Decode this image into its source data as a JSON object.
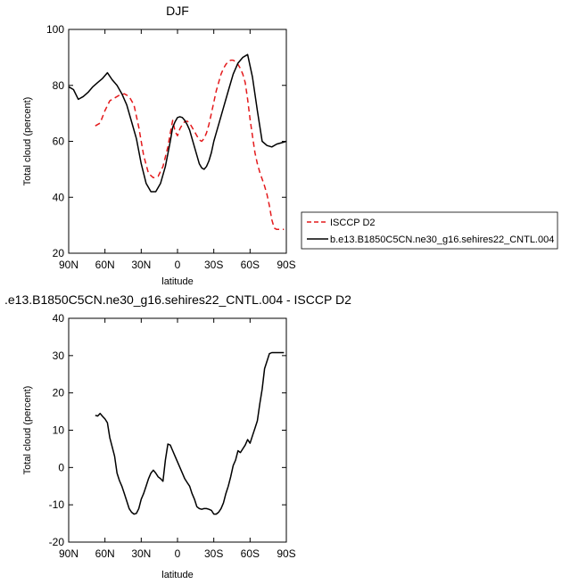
{
  "chart_data": [
    {
      "type": "line",
      "title": "DJF",
      "xlabel": "latitude",
      "ylabel": "Total cloud (percent)",
      "xlim": [
        90,
        -90
      ],
      "ylim": [
        20,
        100
      ],
      "xticks": [
        90,
        60,
        30,
        0,
        -30,
        -60,
        -90
      ],
      "xtick_labels": [
        "90N",
        "60N",
        "30N",
        "0",
        "30S",
        "60S",
        "90S"
      ],
      "yticks": [
        20,
        40,
        60,
        80,
        100
      ],
      "ytick_labels": [
        "20",
        "40",
        "60",
        "80",
        "100"
      ],
      "legend_position": "right",
      "series": [
        {
          "name": "ISCCP D2",
          "color": "#e41a1c",
          "dash": "dashed",
          "x": [
            68,
            64,
            60,
            56,
            52,
            48,
            44,
            40,
            36,
            32,
            28,
            24,
            20,
            16,
            12,
            8,
            6,
            4,
            2,
            0,
            -2,
            -4,
            -6,
            -8,
            -10,
            -12,
            -14,
            -16,
            -18,
            -20,
            -22,
            -24,
            -26,
            -28,
            -30,
            -32,
            -34,
            -36,
            -38,
            -40,
            -42,
            -44,
            -46,
            -48,
            -50,
            -52,
            -54,
            -56,
            -58,
            -60,
            -62,
            -64,
            -66,
            -68,
            -70,
            -72,
            -74,
            -76,
            -78,
            -80,
            -82,
            -84,
            -86,
            -88
          ],
          "y": [
            65.5,
            66.5,
            71,
            74.5,
            75.5,
            76.5,
            77,
            76,
            73,
            65,
            55,
            48.5,
            47,
            47.5,
            51,
            58,
            63,
            67.5,
            63.5,
            62,
            64.5,
            66,
            67,
            67.2,
            66.5,
            65,
            63.5,
            62,
            60.5,
            60,
            61,
            63,
            66,
            70,
            74,
            78,
            81,
            84,
            86,
            87.5,
            88.5,
            89,
            89,
            88.5,
            87.5,
            86,
            84,
            81,
            75,
            68,
            62,
            56,
            52,
            49,
            46.5,
            44,
            41,
            37,
            32,
            29,
            28.5,
            28.5,
            28.5,
            28.5
          ]
        },
        {
          "name": "b.e13.B1850C5CN.ne30_g16.sehires22_CNTL.004",
          "color": "#000000",
          "dash": "solid",
          "x": [
            90,
            86,
            82,
            78,
            74,
            70,
            66,
            62,
            58,
            54,
            50,
            46,
            42,
            38,
            34,
            30,
            26,
            22,
            18,
            14,
            10,
            6,
            4,
            2,
            0,
            -2,
            -4,
            -6,
            -8,
            -10,
            -12,
            -14,
            -16,
            -18,
            -20,
            -22,
            -24,
            -26,
            -28,
            -30,
            -32,
            -34,
            -38,
            -42,
            -46,
            -50,
            -54,
            -58,
            -62,
            -66,
            -70,
            -74,
            -78,
            -82,
            -86,
            -90
          ],
          "y": [
            79.5,
            78.5,
            75,
            76,
            77.5,
            79.5,
            81,
            82.5,
            84.5,
            82,
            80,
            77,
            73,
            67,
            61,
            52,
            45,
            42,
            42,
            45,
            51,
            60,
            65,
            67,
            68.5,
            68.8,
            68.5,
            67.5,
            66,
            64,
            61,
            58,
            55,
            52,
            50.5,
            50,
            51,
            53,
            56,
            60,
            63,
            66,
            72,
            78,
            84,
            88,
            90,
            91,
            83,
            71,
            60,
            58.5,
            58,
            59,
            59.5,
            60
          ]
        }
      ]
    },
    {
      "type": "line",
      "title": ".e13.B1850C5CN.ne30_g16.sehires22_CNTL.004 - ISCCP D2",
      "xlabel": "latitude",
      "ylabel": "Total cloud (percent)",
      "xlim": [
        90,
        -90
      ],
      "ylim": [
        -20,
        40
      ],
      "xticks": [
        90,
        60,
        30,
        0,
        -30,
        -60,
        -90
      ],
      "xtick_labels": [
        "90N",
        "60N",
        "30N",
        "0",
        "30S",
        "60S",
        "90S"
      ],
      "yticks": [
        -20,
        -10,
        0,
        10,
        20,
        30,
        40
      ],
      "ytick_labels": [
        "-20",
        "-10",
        "0",
        "10",
        "20",
        "30",
        "40"
      ],
      "series": [
        {
          "color": "#000000",
          "dash": "solid",
          "x": [
            68,
            66,
            64,
            62,
            60,
            58,
            56,
            54,
            52,
            50,
            48,
            46,
            44,
            42,
            40,
            38,
            36,
            34,
            32,
            30,
            28,
            26,
            24,
            22,
            20,
            18,
            16,
            14,
            12,
            10,
            8,
            6,
            4,
            2,
            0,
            -2,
            -4,
            -6,
            -8,
            -10,
            -12,
            -14,
            -16,
            -18,
            -20,
            -22,
            -24,
            -26,
            -28,
            -30,
            -32,
            -34,
            -36,
            -38,
            -40,
            -42,
            -44,
            -46,
            -48,
            -50,
            -52,
            -54,
            -56,
            -58,
            -60,
            -62,
            -64,
            -66,
            -68,
            -70,
            -72,
            -74,
            -76,
            -78,
            -80,
            -82,
            -84,
            -86,
            -88
          ],
          "y": [
            14,
            13.8,
            14.5,
            13.7,
            13,
            12,
            8,
            5.5,
            3,
            -1.5,
            -3.5,
            -5,
            -7,
            -9,
            -11,
            -12,
            -12.5,
            -12.3,
            -11,
            -8.5,
            -7,
            -5,
            -3,
            -1.5,
            -0.7,
            -1.5,
            -2.5,
            -3,
            -3.7,
            2,
            6.3,
            6,
            4.5,
            3,
            1.5,
            0,
            -1.5,
            -3,
            -4,
            -5,
            -7,
            -8.5,
            -10.5,
            -11,
            -11.2,
            -11,
            -11,
            -11.2,
            -11.5,
            -12.5,
            -12.5,
            -12,
            -11,
            -9.5,
            -7,
            -5,
            -2.5,
            0.5,
            2,
            4.5,
            4,
            5,
            6,
            7.5,
            6.5,
            8.5,
            10.5,
            12.5,
            17,
            21,
            26.5,
            28.5,
            30.5,
            30.8,
            30.8,
            30.8,
            30.8,
            30.8,
            30.8
          ]
        }
      ]
    }
  ]
}
